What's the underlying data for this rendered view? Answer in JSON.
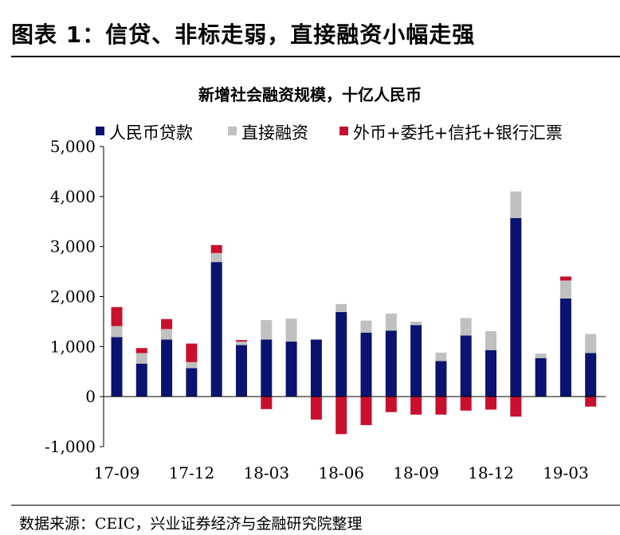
{
  "header": {
    "title": "图表 1：信贷、非标走弱，直接融资小幅走强"
  },
  "footer": {
    "source": "数据来源：CEIC，兴业证券经济与金融研究院整理"
  },
  "colors": {
    "rmb_loans": "#0a1370",
    "direct_financing": "#c0c0c0",
    "off_balance": "#c8102e"
  },
  "chart_data": {
    "type": "bar",
    "stacked": true,
    "title": "新增社会融资规模，十亿人民币",
    "xlabel": "",
    "ylabel": "",
    "ylim": [
      -1000,
      5000
    ],
    "yticks": [
      5000,
      4000,
      3000,
      2000,
      1000,
      0,
      -1000
    ],
    "ytick_labels": [
      "5,000",
      "4,000",
      "3,000",
      "2,000",
      "1,000",
      "0",
      "-1,000"
    ],
    "grid": false,
    "legend_position": "top",
    "categories": [
      "17-09",
      "17-10",
      "17-11",
      "17-12",
      "18-01",
      "18-02",
      "18-03",
      "18-04",
      "18-05",
      "18-06",
      "18-07",
      "18-08",
      "18-09",
      "18-10",
      "18-11",
      "18-12",
      "19-01",
      "19-02",
      "19-03",
      "19-04"
    ],
    "xtick_labels": [
      "17-09",
      "",
      "",
      "17-12",
      "",
      "",
      "18-03",
      "",
      "",
      "18-06",
      "",
      "",
      "18-09",
      "",
      "",
      "18-12",
      "",
      "",
      "19-03",
      ""
    ],
    "series": [
      {
        "name": "人民币贷款",
        "color": "#0a1370",
        "values": [
          1190,
          660,
          1140,
          570,
          2690,
          1030,
          1140,
          1100,
          1140,
          1690,
          1280,
          1320,
          1430,
          710,
          1220,
          930,
          3570,
          770,
          1960,
          870
        ]
      },
      {
        "name": "直接融资",
        "color": "#c0c0c0",
        "values": [
          220,
          210,
          210,
          120,
          180,
          70,
          390,
          460,
          0,
          160,
          240,
          340,
          70,
          170,
          350,
          380,
          530,
          90,
          360,
          380
        ]
      },
      {
        "name": "外币+委托+信托+银行汇票",
        "color": "#c8102e",
        "values": [
          380,
          100,
          200,
          370,
          160,
          30,
          -250,
          0,
          -460,
          -750,
          -570,
          -310,
          -360,
          -360,
          -280,
          -260,
          -400,
          0,
          80,
          -200
        ]
      }
    ]
  }
}
